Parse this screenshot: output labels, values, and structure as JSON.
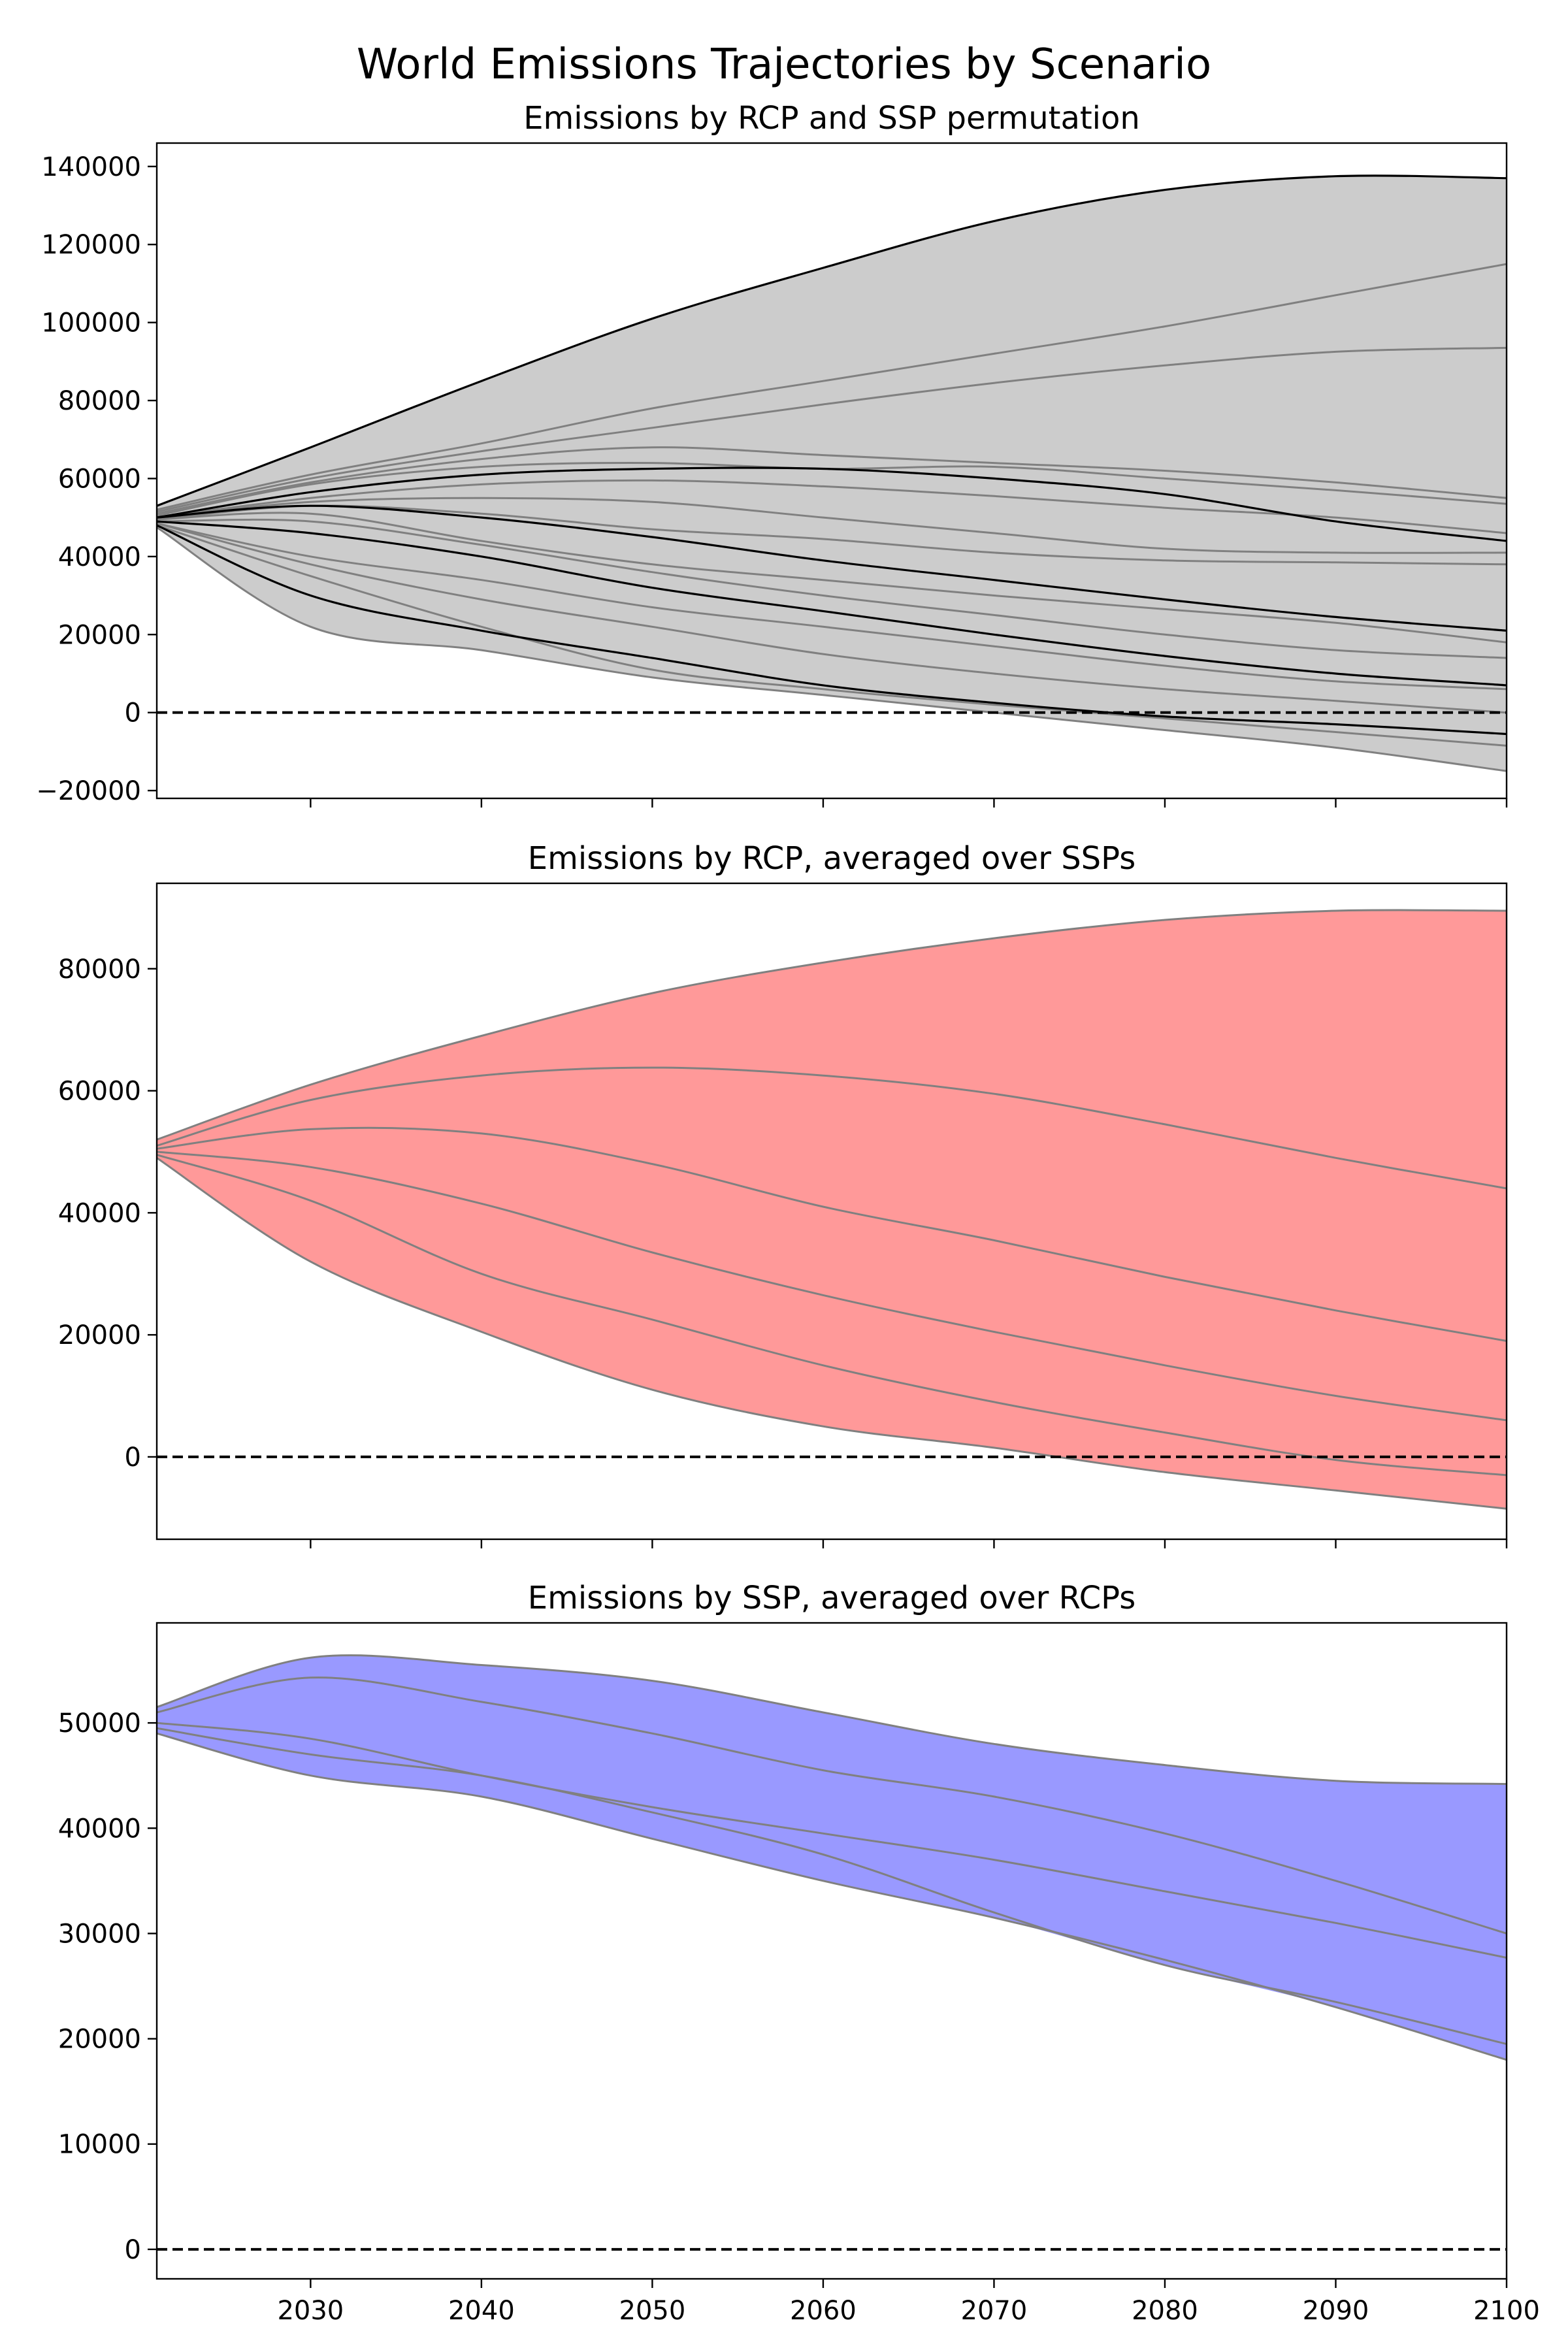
{
  "title": "World Emissions Trajectories by Scenario",
  "colors": {
    "panel1_fill": "#cccccc",
    "panel2_fill": "#ff9999",
    "panel3_fill": "#9999ff",
    "line_gray": "#808080",
    "line_black": "#000000",
    "zero_line": "#000000"
  },
  "chart_data": [
    {
      "type": "area",
      "title": "Emissions by RCP and SSP permutation",
      "xlim": [
        2021,
        2100
      ],
      "ylim": [
        -22000,
        146000
      ],
      "x_ticks": [
        2030,
        2040,
        2050,
        2060,
        2070,
        2080,
        2090,
        2100
      ],
      "show_x_tick_labels": false,
      "y_ticks": [
        -20000,
        0,
        20000,
        40000,
        60000,
        80000,
        100000,
        120000,
        140000
      ],
      "reference_line": 0,
      "fill_color": "#cccccc",
      "x": [
        2021,
        2030,
        2040,
        2050,
        2060,
        2070,
        2080,
        2090,
        2100
      ],
      "series": [
        {
          "color": "#000000",
          "values": [
            53000,
            68000,
            85000,
            101000,
            114000,
            126000,
            134000,
            137500,
            137000
          ]
        },
        {
          "color": "#808080",
          "values": [
            52000,
            61000,
            69000,
            78000,
            85000,
            92000,
            99000,
            107000,
            115000
          ]
        },
        {
          "color": "#808080",
          "values": [
            51500,
            60000,
            67000,
            73000,
            79000,
            84500,
            89000,
            92500,
            93500
          ]
        },
        {
          "color": "#808080",
          "values": [
            51000,
            59000,
            65000,
            68000,
            66000,
            64000,
            62000,
            59000,
            55000
          ]
        },
        {
          "color": "#808080",
          "values": [
            50500,
            58500,
            63000,
            64000,
            62500,
            63000,
            60000,
            57000,
            53500
          ]
        },
        {
          "color": "#000000",
          "values": [
            50000,
            56500,
            61000,
            62500,
            62500,
            60000,
            56000,
            49000,
            44000
          ]
        },
        {
          "color": "#808080",
          "values": [
            50000,
            55000,
            58500,
            59500,
            58000,
            55500,
            52500,
            50000,
            46000
          ]
        },
        {
          "color": "#808080",
          "values": [
            50000,
            54000,
            55000,
            54000,
            50000,
            46000,
            42000,
            41000,
            41000
          ]
        },
        {
          "color": "#808080",
          "values": [
            49500,
            53000,
            51000,
            47000,
            44500,
            41000,
            39000,
            38500,
            38000
          ]
        },
        {
          "color": "#000000",
          "values": [
            50000,
            53000,
            50000,
            45000,
            39000,
            34000,
            29000,
            24500,
            21000
          ]
        },
        {
          "color": "#808080",
          "values": [
            49500,
            51000,
            44000,
            38000,
            34000,
            30000,
            26500,
            23000,
            18000
          ]
        },
        {
          "color": "#808080",
          "values": [
            49000,
            49000,
            43000,
            36000,
            30000,
            25000,
            20000,
            16000,
            14000
          ]
        },
        {
          "color": "#000000",
          "values": [
            49000,
            46000,
            40000,
            32000,
            26000,
            20000,
            14500,
            10000,
            7000
          ]
        },
        {
          "color": "#808080",
          "values": [
            48500,
            40000,
            34000,
            27000,
            22000,
            17000,
            12000,
            8000,
            6000
          ]
        },
        {
          "color": "#808080",
          "values": [
            48500,
            38000,
            29000,
            22000,
            15000,
            10000,
            6000,
            3000,
            0
          ]
        },
        {
          "color": "#000000",
          "values": [
            48000,
            30000,
            21000,
            14000,
            7000,
            2500,
            -1000,
            -3000,
            -5500
          ]
        },
        {
          "color": "#808080",
          "values": [
            48000,
            35000,
            22000,
            11000,
            6000,
            2000,
            -1500,
            -5000,
            -8500
          ]
        },
        {
          "color": "#808080",
          "values": [
            47500,
            22000,
            16000,
            9000,
            4500,
            0,
            -4500,
            -9000,
            -15000
          ]
        }
      ]
    },
    {
      "type": "area",
      "title": "Emissions by RCP, averaged over SSPs",
      "xlim": [
        2021,
        2100
      ],
      "ylim": [
        -13500,
        94000
      ],
      "x_ticks": [
        2030,
        2040,
        2050,
        2060,
        2070,
        2080,
        2090,
        2100
      ],
      "show_x_tick_labels": false,
      "y_ticks": [
        0,
        20000,
        40000,
        60000,
        80000
      ],
      "reference_line": 0,
      "fill_color": "#ff9999",
      "x": [
        2021,
        2030,
        2040,
        2050,
        2060,
        2070,
        2080,
        2090,
        2100
      ],
      "series": [
        {
          "color": "#808080",
          "values": [
            52000,
            61000,
            69000,
            76000,
            81000,
            85000,
            88000,
            89500,
            89500
          ]
        },
        {
          "color": "#808080",
          "values": [
            51000,
            58500,
            62500,
            63800,
            62500,
            59500,
            54500,
            49000,
            44000
          ]
        },
        {
          "color": "#808080",
          "values": [
            50500,
            53700,
            53000,
            48000,
            41000,
            35500,
            29500,
            24000,
            19000
          ]
        },
        {
          "color": "#808080",
          "values": [
            50000,
            47500,
            41500,
            33500,
            26500,
            20500,
            15000,
            10000,
            6000
          ]
        },
        {
          "color": "#808080",
          "values": [
            49500,
            42000,
            30000,
            22500,
            15000,
            9000,
            4000,
            -500,
            -3000
          ]
        },
        {
          "color": "#808080",
          "values": [
            49000,
            32000,
            20500,
            11000,
            5000,
            1500,
            -2500,
            -5500,
            -8500
          ]
        }
      ]
    },
    {
      "type": "area",
      "title": "Emissions by SSP, averaged over RCPs",
      "xlim": [
        2021,
        2100
      ],
      "ylim": [
        -2800,
        59500
      ],
      "x_ticks": [
        2030,
        2040,
        2050,
        2060,
        2070,
        2080,
        2090,
        2100
      ],
      "show_x_tick_labels": true,
      "y_ticks": [
        0,
        10000,
        20000,
        30000,
        40000,
        50000
      ],
      "reference_line": 0,
      "fill_color": "#9999ff",
      "x": [
        2021,
        2030,
        2040,
        2050,
        2060,
        2070,
        2080,
        2090,
        2100
      ],
      "series": [
        {
          "color": "#808080",
          "values": [
            51500,
            56200,
            55500,
            54000,
            51000,
            48000,
            46000,
            44500,
            44200
          ]
        },
        {
          "color": "#808080",
          "values": [
            51000,
            54300,
            52000,
            49000,
            45500,
            43000,
            39500,
            35000,
            30000
          ]
        },
        {
          "color": "#808080",
          "values": [
            50000,
            48500,
            45000,
            42000,
            39500,
            37000,
            34000,
            31000,
            27700
          ]
        },
        {
          "color": "#808080",
          "values": [
            49500,
            47000,
            45000,
            41500,
            37500,
            32000,
            27000,
            23500,
            19500
          ]
        },
        {
          "color": "#808080",
          "values": [
            49000,
            45000,
            43000,
            39000,
            35000,
            31500,
            27500,
            23000,
            18000
          ]
        }
      ]
    }
  ]
}
